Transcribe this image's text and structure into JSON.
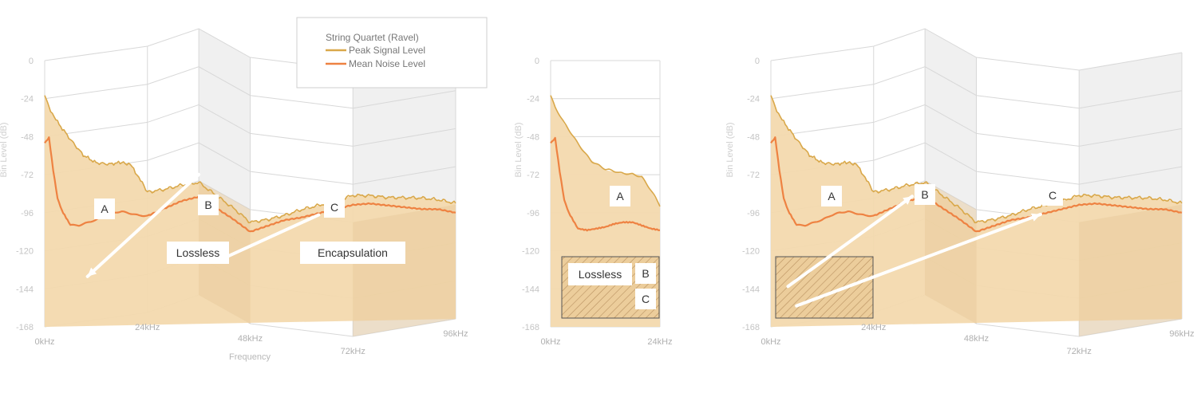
{
  "colors": {
    "peak": "#d9a84a",
    "noise": "#ee8242",
    "fill": "#f3d9ae",
    "fill_dark": "#e6c79a",
    "band_gray": "#f0f0f0",
    "grid": "#d8d8d8"
  },
  "legend": {
    "title": "String Quartet (Ravel)",
    "items": [
      {
        "label": "Peak Signal Level",
        "color": "#d9a84a"
      },
      {
        "label": "Mean Noise Level",
        "color": "#ee8242"
      }
    ]
  },
  "chart_data": [
    {
      "type": "area",
      "ylabel": "Bin Level (dB)",
      "xlabel": "Frequency",
      "ylim": [
        -168,
        0
      ],
      "yticks": [
        "0",
        "-24",
        "-48",
        "-72",
        "-96",
        "-120",
        "-144",
        "-168"
      ],
      "xticks": [
        "0kHz",
        "24kHz",
        "48kHz",
        "72kHz",
        "96kHz"
      ],
      "xlim": [
        0,
        96
      ],
      "series": [
        {
          "name": "Peak Signal Level",
          "x": [
            0,
            1,
            3,
            6,
            9,
            12,
            15,
            18,
            20,
            22,
            24,
            28,
            32,
            36,
            40,
            44,
            48,
            52,
            56,
            60,
            64,
            68,
            72,
            76,
            80,
            84,
            88,
            92,
            96
          ],
          "values": [
            -22,
            -30,
            -40,
            -52,
            -63,
            -69,
            -71,
            -71,
            -73,
            -82,
            -92,
            -94,
            -95,
            -97,
            -99,
            -101,
            -104,
            -101,
            -97,
            -92,
            -88,
            -84,
            -79,
            -81,
            -84,
            -86,
            -88,
            -91,
            -95
          ]
        },
        {
          "name": "Mean Noise Level",
          "x": [
            0,
            1,
            2,
            3,
            4,
            5,
            6,
            8,
            10,
            12,
            14,
            16,
            18,
            20,
            22,
            24,
            28,
            32,
            36,
            40,
            44,
            48,
            52,
            56,
            60,
            64,
            68,
            72,
            76,
            80,
            84,
            88,
            92,
            96
          ],
          "values": [
            -52,
            -49,
            -70,
            -88,
            -96,
            -101,
            -106,
            -107,
            -106,
            -105,
            -103,
            -102,
            -102,
            -104,
            -106,
            -107,
            -106,
            -105,
            -106,
            -107,
            -108,
            -110,
            -105,
            -100,
            -97,
            -93,
            -89,
            -85,
            -86,
            -89,
            -92,
            -95,
            -97,
            -101
          ]
        }
      ],
      "annotations": [
        {
          "label": "A",
          "x": 11.5,
          "y": -88
        },
        {
          "label": "B",
          "x": 36,
          "y": -86
        },
        {
          "label": "C",
          "x": 65,
          "y": -86
        },
        {
          "label": "Lossless",
          "x": 36.5,
          "y": -122
        },
        {
          "label": "Encapsulation",
          "x": 74,
          "y": -122
        }
      ]
    },
    {
      "type": "area",
      "ylabel": "Bin Level (dB)",
      "ylim": [
        -168,
        0
      ],
      "yticks": [
        "0",
        "-24",
        "-48",
        "-72",
        "-96",
        "-120",
        "-144",
        "-168"
      ],
      "xticks": [
        "0kHz",
        "24kHz"
      ],
      "xlim": [
        0,
        24
      ],
      "series": [
        {
          "name": "Peak Signal Level",
          "x": [
            0,
            1,
            3,
            6,
            9,
            12,
            15,
            18,
            20,
            22,
            24
          ],
          "values": [
            -22,
            -30,
            -40,
            -52,
            -63,
            -69,
            -71,
            -71,
            -73,
            -82,
            -92
          ]
        },
        {
          "name": "Mean Noise Level",
          "x": [
            0,
            1,
            2,
            3,
            4,
            5,
            6,
            8,
            10,
            12,
            14,
            16,
            18,
            20,
            22,
            24
          ],
          "values": [
            -52,
            -49,
            -70,
            -88,
            -96,
            -101,
            -106,
            -107,
            -106,
            -105,
            -103,
            -102,
            -102,
            -104,
            -106,
            -107
          ]
        }
      ],
      "annotations": [
        {
          "label": "A",
          "x": 11.5,
          "y": -88
        },
        {
          "label": "Lossless",
          "x": 9,
          "y": -135
        },
        {
          "label": "B",
          "x": 19.5,
          "y": -135
        },
        {
          "label": "C",
          "x": 19.5,
          "y": -150
        }
      ]
    },
    {
      "type": "area",
      "ylabel": "Bin Level (dB)",
      "ylim": [
        -168,
        0
      ],
      "yticks": [
        "0",
        "-24",
        "-48",
        "-72",
        "-96",
        "-120",
        "-144",
        "-168"
      ],
      "xticks": [
        "0kHz",
        "24kHz",
        "48kHz",
        "72kHz",
        "96kHz"
      ],
      "xlim": [
        0,
        96
      ],
      "series": [
        {
          "name": "Peak Signal Level",
          "x": [
            0,
            1,
            3,
            6,
            9,
            12,
            15,
            18,
            20,
            22,
            24,
            28,
            32,
            36,
            40,
            44,
            48,
            52,
            56,
            60,
            64,
            68,
            72,
            76,
            80,
            84,
            88,
            92,
            96
          ],
          "values": [
            -22,
            -30,
            -40,
            -52,
            -63,
            -69,
            -71,
            -71,
            -73,
            -82,
            -92,
            -94,
            -95,
            -97,
            -99,
            -101,
            -104,
            -101,
            -97,
            -92,
            -88,
            -84,
            -79,
            -81,
            -84,
            -86,
            -88,
            -91,
            -95
          ]
        },
        {
          "name": "Mean Noise Level",
          "x": [
            0,
            1,
            2,
            3,
            4,
            5,
            6,
            8,
            10,
            12,
            14,
            16,
            18,
            20,
            22,
            24,
            28,
            32,
            36,
            40,
            44,
            48,
            52,
            56,
            60,
            64,
            68,
            72,
            76,
            80,
            84,
            88,
            92,
            96
          ],
          "values": [
            -52,
            -49,
            -70,
            -88,
            -96,
            -101,
            -106,
            -107,
            -106,
            -105,
            -103,
            -102,
            -102,
            -104,
            -106,
            -107,
            -106,
            -105,
            -106,
            -107,
            -108,
            -110,
            -105,
            -100,
            -97,
            -93,
            -89,
            -85,
            -86,
            -89,
            -92,
            -95,
            -97,
            -101
          ]
        }
      ],
      "annotations": [
        {
          "label": "A",
          "x": 11.5,
          "y": -88
        },
        {
          "label": "B",
          "x": 36,
          "y": -86
        },
        {
          "label": "C",
          "x": 66,
          "y": -86
        }
      ]
    }
  ]
}
